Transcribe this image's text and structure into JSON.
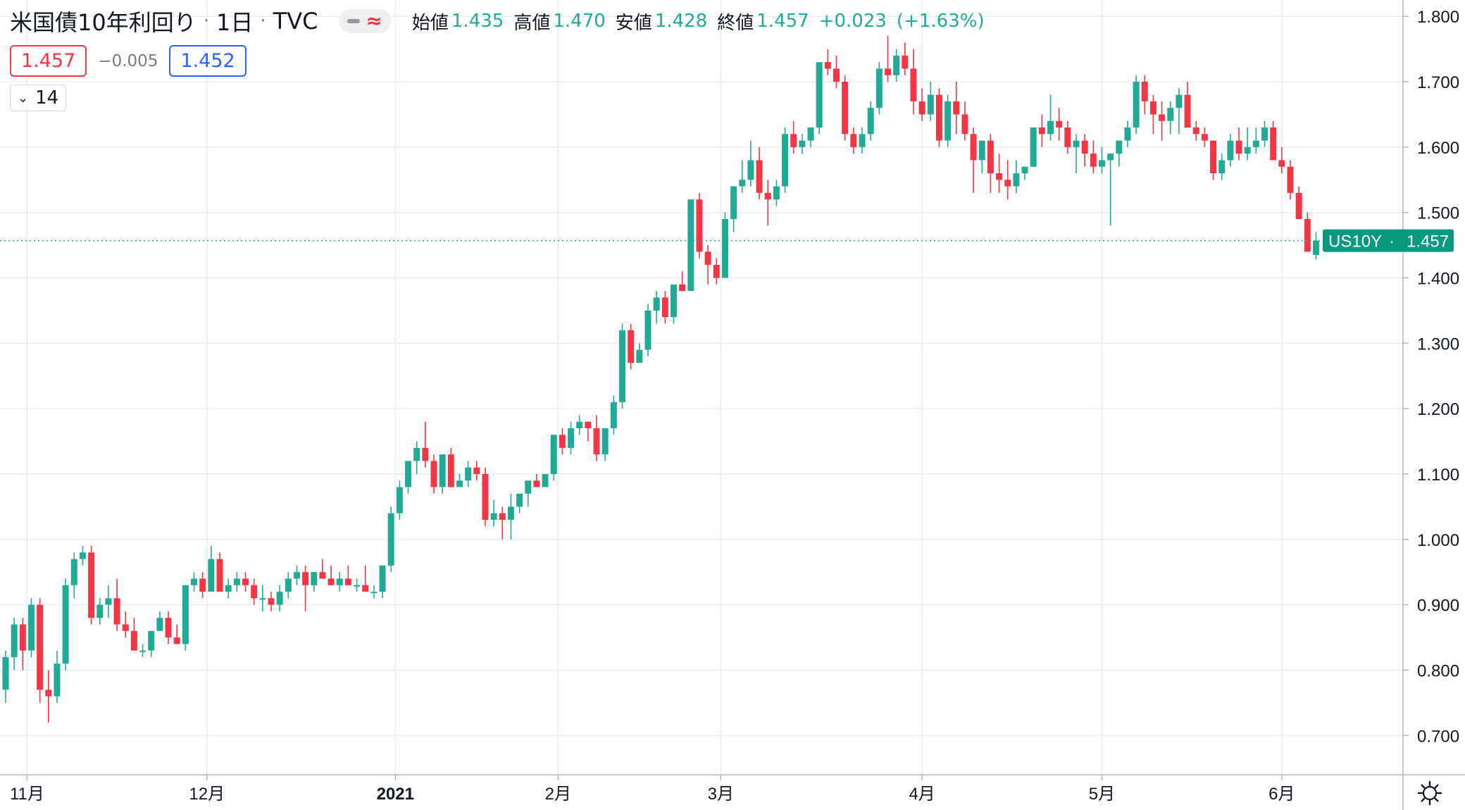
{
  "legend": {
    "symbol_name": "米国債10年利回り",
    "timeframe": "1日",
    "source": "TVC",
    "open_label": "始値",
    "open": "1.435",
    "high_label": "高値",
    "high": "1.470",
    "low_label": "安値",
    "low": "1.428",
    "close_label": "終値",
    "close": "1.457",
    "change": "+0.023",
    "change_pct": "(+1.63%)"
  },
  "bid_price": "1.457",
  "spread": "−0.005",
  "ask_price": "1.452",
  "indicator_count": "14",
  "icons": {
    "collapse": "chevron-down-icon",
    "settings": "gear-icon",
    "line_style": "dash-icon",
    "compare": "wave-icon"
  },
  "colors": {
    "up": "#22ab94",
    "down": "#f23645",
    "bid": "#f23645",
    "ask": "#2962ff",
    "grid": "#e6ecf2",
    "price_label_bg": "#089981"
  },
  "chart_data": {
    "type": "candlestick",
    "symbol": "US10Y",
    "last_value": 1.457,
    "last_label": "1.457",
    "ylim": [
      0.64,
      1.825
    ],
    "y_ticks": [
      0.7,
      0.8,
      0.9,
      1.0,
      1.1,
      1.2,
      1.3,
      1.4,
      1.5,
      1.6,
      1.7,
      1.8
    ],
    "y_tick_labels": [
      "0.700",
      "0.800",
      "0.900",
      "1.000",
      "1.100",
      "1.200",
      "1.300",
      "1.400",
      "1.500",
      "1.600",
      "1.700",
      "1.800"
    ],
    "x_ticks": [
      {
        "label": "11月",
        "index": 2.5,
        "bold": false
      },
      {
        "label": "12月",
        "index": 23.5,
        "bold": false
      },
      {
        "label": "2021",
        "index": 45.5,
        "bold": true
      },
      {
        "label": "2月",
        "index": 64.5,
        "bold": false
      },
      {
        "label": "3月",
        "index": 83.5,
        "bold": false
      },
      {
        "label": "4月",
        "index": 107,
        "bold": false
      },
      {
        "label": "5月",
        "index": 128,
        "bold": false
      },
      {
        "label": "6月",
        "index": 149,
        "bold": false
      }
    ],
    "grid": true,
    "candles": [
      [
        0.77,
        0.83,
        0.75,
        0.82
      ],
      [
        0.82,
        0.88,
        0.8,
        0.87
      ],
      [
        0.87,
        0.88,
        0.8,
        0.83
      ],
      [
        0.83,
        0.91,
        0.82,
        0.9
      ],
      [
        0.9,
        0.91,
        0.75,
        0.77
      ],
      [
        0.77,
        0.8,
        0.72,
        0.76
      ],
      [
        0.76,
        0.83,
        0.75,
        0.81
      ],
      [
        0.81,
        0.94,
        0.8,
        0.93
      ],
      [
        0.93,
        0.98,
        0.91,
        0.97
      ],
      [
        0.97,
        0.99,
        0.96,
        0.98
      ],
      [
        0.98,
        0.99,
        0.87,
        0.88
      ],
      [
        0.88,
        0.91,
        0.87,
        0.9
      ],
      [
        0.9,
        0.93,
        0.88,
        0.91
      ],
      [
        0.91,
        0.94,
        0.86,
        0.87
      ],
      [
        0.87,
        0.89,
        0.85,
        0.86
      ],
      [
        0.86,
        0.88,
        0.83,
        0.83
      ],
      [
        0.83,
        0.84,
        0.82,
        0.83
      ],
      [
        0.83,
        0.86,
        0.82,
        0.86
      ],
      [
        0.86,
        0.89,
        0.86,
        0.88
      ],
      [
        0.88,
        0.89,
        0.84,
        0.85
      ],
      [
        0.85,
        0.87,
        0.84,
        0.84
      ],
      [
        0.84,
        0.93,
        0.83,
        0.93
      ],
      [
        0.93,
        0.95,
        0.92,
        0.94
      ],
      [
        0.94,
        0.95,
        0.91,
        0.92
      ],
      [
        0.92,
        0.99,
        0.92,
        0.97
      ],
      [
        0.97,
        0.98,
        0.92,
        0.92
      ],
      [
        0.92,
        0.94,
        0.91,
        0.93
      ],
      [
        0.93,
        0.95,
        0.92,
        0.94
      ],
      [
        0.94,
        0.95,
        0.92,
        0.93
      ],
      [
        0.93,
        0.94,
        0.9,
        0.91
      ],
      [
        0.91,
        0.93,
        0.89,
        0.91
      ],
      [
        0.91,
        0.92,
        0.89,
        0.9
      ],
      [
        0.9,
        0.93,
        0.89,
        0.92
      ],
      [
        0.92,
        0.95,
        0.91,
        0.94
      ],
      [
        0.94,
        0.96,
        0.93,
        0.95
      ],
      [
        0.95,
        0.96,
        0.89,
        0.93
      ],
      [
        0.93,
        0.95,
        0.92,
        0.95
      ],
      [
        0.95,
        0.97,
        0.94,
        0.94
      ],
      [
        0.94,
        0.96,
        0.93,
        0.93
      ],
      [
        0.93,
        0.95,
        0.92,
        0.94
      ],
      [
        0.94,
        0.96,
        0.93,
        0.93
      ],
      [
        0.93,
        0.94,
        0.92,
        0.93
      ],
      [
        0.93,
        0.96,
        0.92,
        0.92
      ],
      [
        0.92,
        0.93,
        0.91,
        0.92
      ],
      [
        0.92,
        0.95,
        0.91,
        0.96
      ],
      [
        0.96,
        1.05,
        0.95,
        1.04
      ],
      [
        1.04,
        1.09,
        1.03,
        1.08
      ],
      [
        1.08,
        1.12,
        1.07,
        1.12
      ],
      [
        1.12,
        1.15,
        1.1,
        1.14
      ],
      [
        1.14,
        1.18,
        1.11,
        1.12
      ],
      [
        1.12,
        1.13,
        1.07,
        1.08
      ],
      [
        1.08,
        1.13,
        1.07,
        1.13
      ],
      [
        1.13,
        1.14,
        1.08,
        1.08
      ],
      [
        1.08,
        1.1,
        1.08,
        1.09
      ],
      [
        1.09,
        1.12,
        1.08,
        1.11
      ],
      [
        1.11,
        1.12,
        1.09,
        1.1
      ],
      [
        1.1,
        1.11,
        1.02,
        1.03
      ],
      [
        1.03,
        1.06,
        1.02,
        1.04
      ],
      [
        1.04,
        1.05,
        1.0,
        1.03
      ],
      [
        1.03,
        1.07,
        1.0,
        1.05
      ],
      [
        1.05,
        1.06,
        1.04,
        1.07
      ],
      [
        1.07,
        1.08,
        1.05,
        1.09
      ],
      [
        1.09,
        1.1,
        1.08,
        1.08
      ],
      [
        1.08,
        1.1,
        1.08,
        1.1
      ],
      [
        1.1,
        1.16,
        1.09,
        1.16
      ],
      [
        1.16,
        1.17,
        1.13,
        1.14
      ],
      [
        1.14,
        1.18,
        1.13,
        1.17
      ],
      [
        1.17,
        1.19,
        1.16,
        1.18
      ],
      [
        1.18,
        1.18,
        1.15,
        1.17
      ],
      [
        1.17,
        1.19,
        1.12,
        1.13
      ],
      [
        1.13,
        1.17,
        1.12,
        1.17
      ],
      [
        1.17,
        1.22,
        1.16,
        1.21
      ],
      [
        1.21,
        1.33,
        1.2,
        1.32
      ],
      [
        1.32,
        1.33,
        1.26,
        1.27
      ],
      [
        1.27,
        1.3,
        1.27,
        1.29
      ],
      [
        1.29,
        1.36,
        1.28,
        1.35
      ],
      [
        1.35,
        1.38,
        1.33,
        1.37
      ],
      [
        1.37,
        1.38,
        1.33,
        1.34
      ],
      [
        1.34,
        1.39,
        1.33,
        1.39
      ],
      [
        1.39,
        1.41,
        1.38,
        1.38
      ],
      [
        1.38,
        1.52,
        1.38,
        1.52
      ],
      [
        1.52,
        1.53,
        1.43,
        1.44
      ],
      [
        1.44,
        1.45,
        1.39,
        1.42
      ],
      [
        1.42,
        1.43,
        1.39,
        1.4
      ],
      [
        1.4,
        1.5,
        1.4,
        1.49
      ],
      [
        1.49,
        1.54,
        1.47,
        1.54
      ],
      [
        1.54,
        1.58,
        1.53,
        1.55
      ],
      [
        1.55,
        1.61,
        1.54,
        1.58
      ],
      [
        1.58,
        1.6,
        1.52,
        1.53
      ],
      [
        1.53,
        1.55,
        1.48,
        1.52
      ],
      [
        1.52,
        1.55,
        1.51,
        1.54
      ],
      [
        1.54,
        1.63,
        1.53,
        1.62
      ],
      [
        1.62,
        1.64,
        1.59,
        1.6
      ],
      [
        1.6,
        1.62,
        1.59,
        1.61
      ],
      [
        1.61,
        1.63,
        1.6,
        1.63
      ],
      [
        1.63,
        1.72,
        1.62,
        1.73
      ],
      [
        1.73,
        1.75,
        1.71,
        1.72
      ],
      [
        1.72,
        1.74,
        1.69,
        1.7
      ],
      [
        1.7,
        1.71,
        1.61,
        1.62
      ],
      [
        1.62,
        1.63,
        1.59,
        1.6
      ],
      [
        1.6,
        1.63,
        1.59,
        1.62
      ],
      [
        1.62,
        1.67,
        1.61,
        1.66
      ],
      [
        1.66,
        1.73,
        1.65,
        1.72
      ],
      [
        1.72,
        1.77,
        1.7,
        1.71
      ],
      [
        1.71,
        1.75,
        1.7,
        1.74
      ],
      [
        1.74,
        1.76,
        1.71,
        1.72
      ],
      [
        1.72,
        1.75,
        1.65,
        1.67
      ],
      [
        1.67,
        1.69,
        1.64,
        1.65
      ],
      [
        1.65,
        1.7,
        1.64,
        1.68
      ],
      [
        1.68,
        1.69,
        1.6,
        1.61
      ],
      [
        1.61,
        1.68,
        1.6,
        1.67
      ],
      [
        1.67,
        1.7,
        1.62,
        1.65
      ],
      [
        1.65,
        1.67,
        1.61,
        1.62
      ],
      [
        1.62,
        1.63,
        1.53,
        1.58
      ],
      [
        1.58,
        1.61,
        1.56,
        1.61
      ],
      [
        1.61,
        1.62,
        1.53,
        1.56
      ],
      [
        1.56,
        1.59,
        1.53,
        1.55
      ],
      [
        1.55,
        1.58,
        1.52,
        1.54
      ],
      [
        1.54,
        1.58,
        1.53,
        1.56
      ],
      [
        1.56,
        1.57,
        1.55,
        1.57
      ],
      [
        1.57,
        1.63,
        1.57,
        1.63
      ],
      [
        1.63,
        1.65,
        1.6,
        1.62
      ],
      [
        1.62,
        1.68,
        1.61,
        1.64
      ],
      [
        1.64,
        1.66,
        1.61,
        1.63
      ],
      [
        1.63,
        1.64,
        1.59,
        1.6
      ],
      [
        1.6,
        1.62,
        1.56,
        1.61
      ],
      [
        1.61,
        1.62,
        1.57,
        1.59
      ],
      [
        1.59,
        1.61,
        1.56,
        1.57
      ],
      [
        1.57,
        1.6,
        1.56,
        1.58
      ],
      [
        1.58,
        1.59,
        1.48,
        1.59
      ],
      [
        1.59,
        1.61,
        1.57,
        1.61
      ],
      [
        1.61,
        1.64,
        1.6,
        1.63
      ],
      [
        1.63,
        1.71,
        1.62,
        1.7
      ],
      [
        1.7,
        1.71,
        1.65,
        1.67
      ],
      [
        1.67,
        1.68,
        1.62,
        1.65
      ],
      [
        1.65,
        1.67,
        1.61,
        1.64
      ],
      [
        1.64,
        1.67,
        1.62,
        1.66
      ],
      [
        1.66,
        1.69,
        1.62,
        1.68
      ],
      [
        1.68,
        1.7,
        1.63,
        1.63
      ],
      [
        1.63,
        1.64,
        1.61,
        1.62
      ],
      [
        1.62,
        1.63,
        1.6,
        1.61
      ],
      [
        1.61,
        1.61,
        1.55,
        1.56
      ],
      [
        1.56,
        1.59,
        1.55,
        1.58
      ],
      [
        1.58,
        1.62,
        1.57,
        1.61
      ],
      [
        1.61,
        1.63,
        1.58,
        1.59
      ],
      [
        1.59,
        1.63,
        1.58,
        1.6
      ],
      [
        1.6,
        1.63,
        1.59,
        1.61
      ],
      [
        1.61,
        1.64,
        1.6,
        1.63
      ],
      [
        1.63,
        1.64,
        1.58,
        1.58
      ],
      [
        1.58,
        1.6,
        1.56,
        1.57
      ],
      [
        1.57,
        1.58,
        1.52,
        1.53
      ],
      [
        1.53,
        1.54,
        1.5,
        1.49
      ],
      [
        1.49,
        1.5,
        1.44,
        1.44
      ],
      [
        1.435,
        1.47,
        1.428,
        1.457
      ]
    ]
  }
}
